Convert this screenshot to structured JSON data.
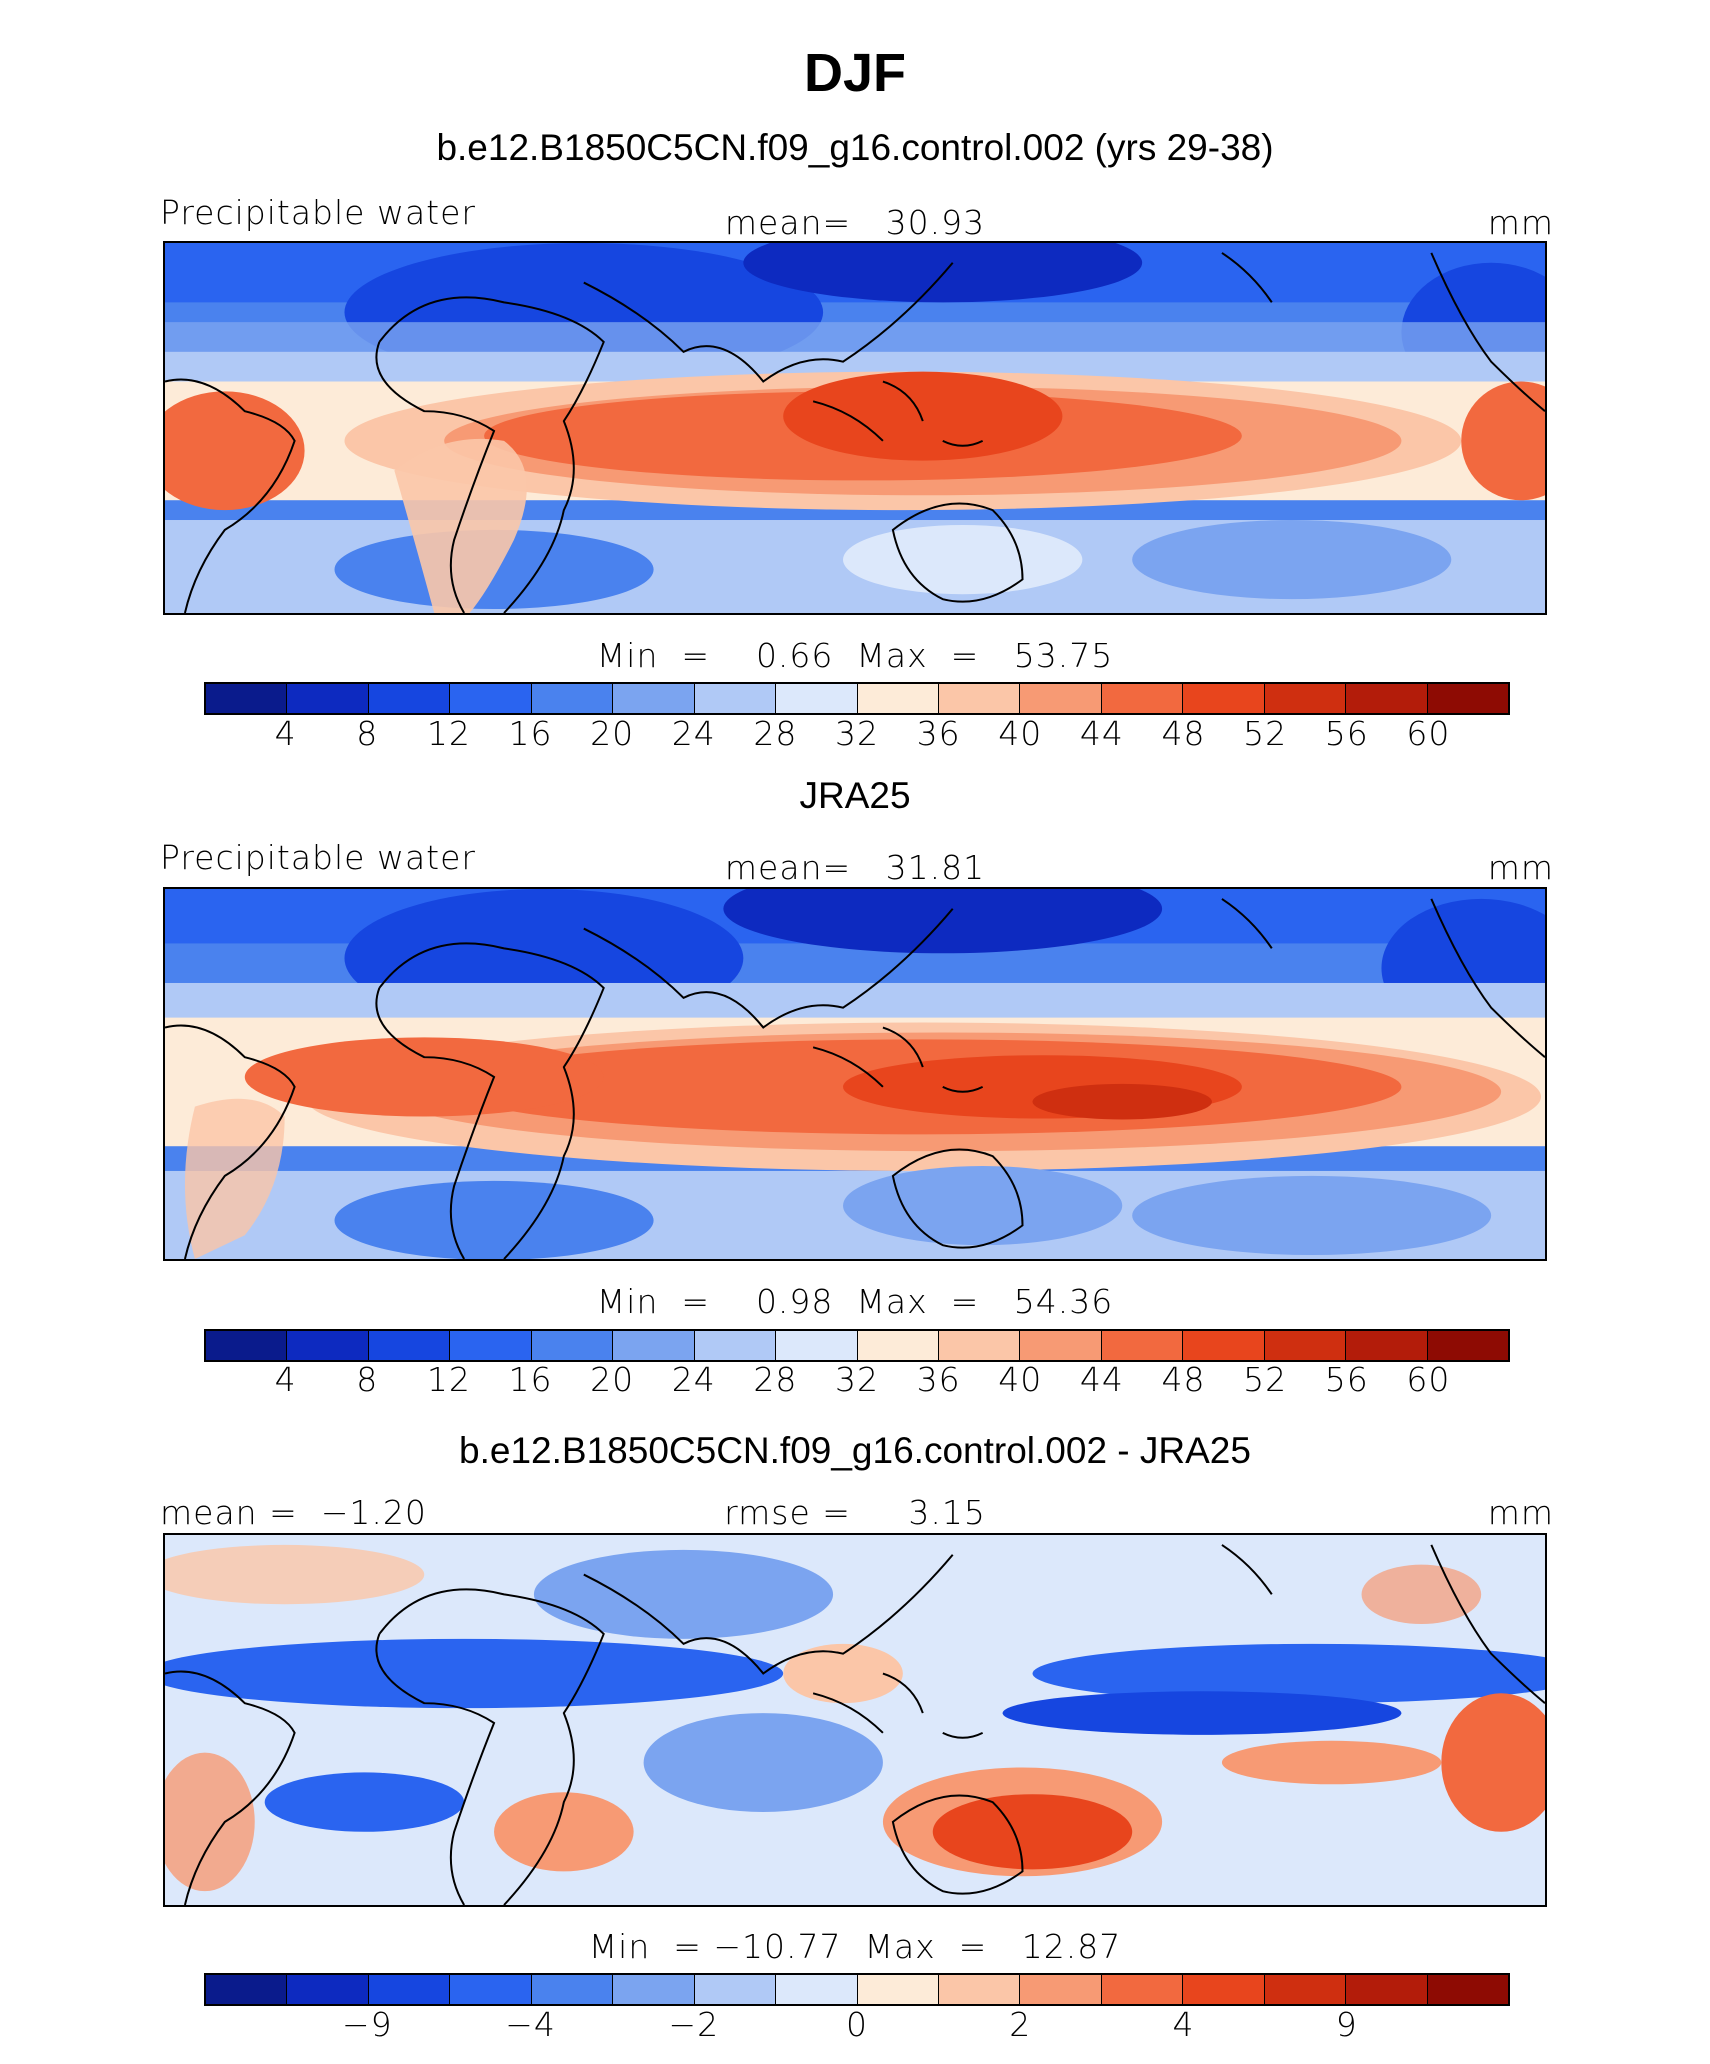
{
  "title": "DJF",
  "panels": [
    {
      "id": "model",
      "title": "b.e12.B1850C5CN.f09_g16.control.002 (yrs 29-38)",
      "left_label": "Precipitable water",
      "center_label": "mean=   30.93",
      "right_label": "mm",
      "minmax": "Min  =    0.66  Max  =   53.75",
      "colorbar_labels": [
        "4",
        "8",
        "12",
        "16",
        "20",
        "24",
        "28",
        "32",
        "36",
        "40",
        "44",
        "48",
        "52",
        "56",
        "60"
      ]
    },
    {
      "id": "obs",
      "title": "JRA25",
      "left_label": "Precipitable water",
      "center_label": "mean=   31.81",
      "right_label": "mm",
      "minmax": "Min  =    0.98  Max  =   54.36",
      "colorbar_labels": [
        "4",
        "8",
        "12",
        "16",
        "20",
        "24",
        "28",
        "32",
        "36",
        "40",
        "44",
        "48",
        "52",
        "56",
        "60"
      ]
    },
    {
      "id": "diff",
      "title": "b.e12.B1850C5CN.f09_g16.control.002 - JRA25",
      "left_label": "mean =  −1.20",
      "center_label": "rmse =     3.15",
      "right_label": "mm",
      "minmax": "Min  = −10.77  Max  =   12.87",
      "colorbar_labels": [
        "−9",
        "−4",
        "−2",
        "0",
        "2",
        "4",
        "9"
      ]
    }
  ],
  "chart_data": [
    {
      "type": "heatmap",
      "title": "b.e12.B1850C5CN.f09_g16.control.002 (yrs 29-38)",
      "variable": "Precipitable water",
      "units": "mm",
      "mean": 30.93,
      "min": 0.66,
      "max": 53.75,
      "contour_levels": [
        4,
        8,
        12,
        16,
        20,
        24,
        28,
        32,
        36,
        40,
        44,
        48,
        52,
        56,
        60
      ]
    },
    {
      "type": "heatmap",
      "title": "JRA25",
      "variable": "Precipitable water",
      "units": "mm",
      "mean": 31.81,
      "min": 0.98,
      "max": 54.36,
      "contour_levels": [
        4,
        8,
        12,
        16,
        20,
        24,
        28,
        32,
        36,
        40,
        44,
        48,
        52,
        56,
        60
      ]
    },
    {
      "type": "heatmap",
      "title": "b.e12.B1850C5CN.f09_g16.control.002 - JRA25",
      "units": "mm",
      "mean": -1.2,
      "rmse": 3.15,
      "min": -10.77,
      "max": 12.87,
      "contour_levels": [
        -9,
        -4,
        -2,
        0,
        2,
        4,
        9
      ]
    }
  ],
  "colors": {
    "palette": [
      "#0a1b8c",
      "#0d2ac0",
      "#1646e0",
      "#2a64f0",
      "#4a82ee",
      "#7ba4f0",
      "#b0c9f6",
      "#dce8fb",
      "#fdebd8",
      "#fbc6a8",
      "#f79a74",
      "#f2693f",
      "#e8451d",
      "#cf2f10",
      "#b31c0a",
      "#8e0b03"
    ],
    "coastline": "#000000"
  }
}
